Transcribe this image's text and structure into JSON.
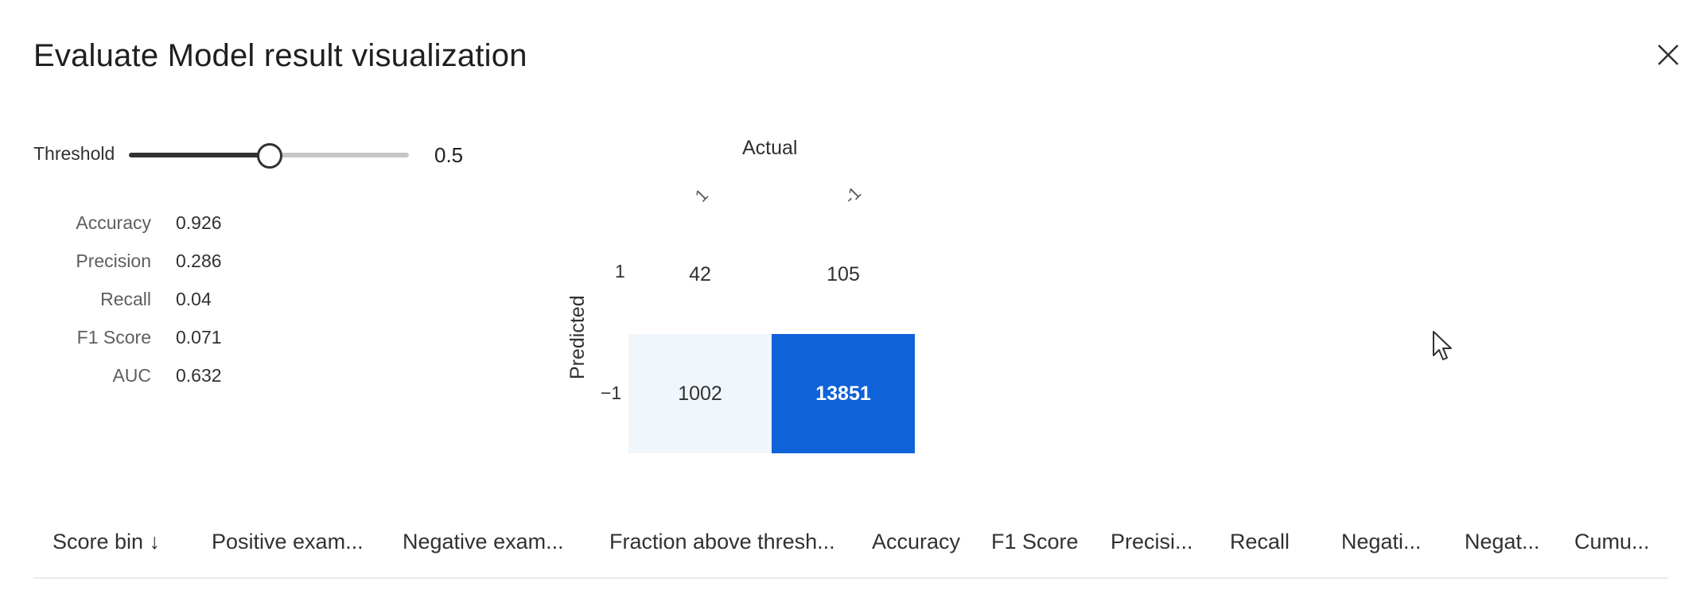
{
  "dialog": {
    "title": "Evaluate Model result visualization",
    "close_icon": "close-icon"
  },
  "threshold": {
    "label": "Threshold",
    "value": "0.5",
    "fraction": 0.5
  },
  "metrics": [
    {
      "label": "Accuracy",
      "value": "0.926"
    },
    {
      "label": "Precision",
      "value": "0.286"
    },
    {
      "label": "Recall",
      "value": "0.04"
    },
    {
      "label": "F1 Score",
      "value": "0.071"
    },
    {
      "label": "AUC",
      "value": "0.632"
    }
  ],
  "confusion_matrix": {
    "x_title": "Actual",
    "y_title": "Predicted",
    "column_labels": [
      "1",
      "-1"
    ],
    "row_labels": [
      "1",
      "−1"
    ],
    "cells": [
      [
        "42",
        "105"
      ],
      [
        "1002",
        "13851"
      ]
    ],
    "colors": {
      "low": "#ffffff",
      "light": "#eff6fc",
      "high": "#0f62d9"
    }
  },
  "table": {
    "columns": [
      "Score bin ↓",
      "Positive exam...",
      "Negative exam...",
      "Fraction above thresh...",
      "Accuracy",
      "F1 Score",
      "Precisi...",
      "Recall",
      "Negati...",
      "Negat...",
      "Cumu..."
    ]
  },
  "cursor_icon": "mouse-pointer-icon"
}
